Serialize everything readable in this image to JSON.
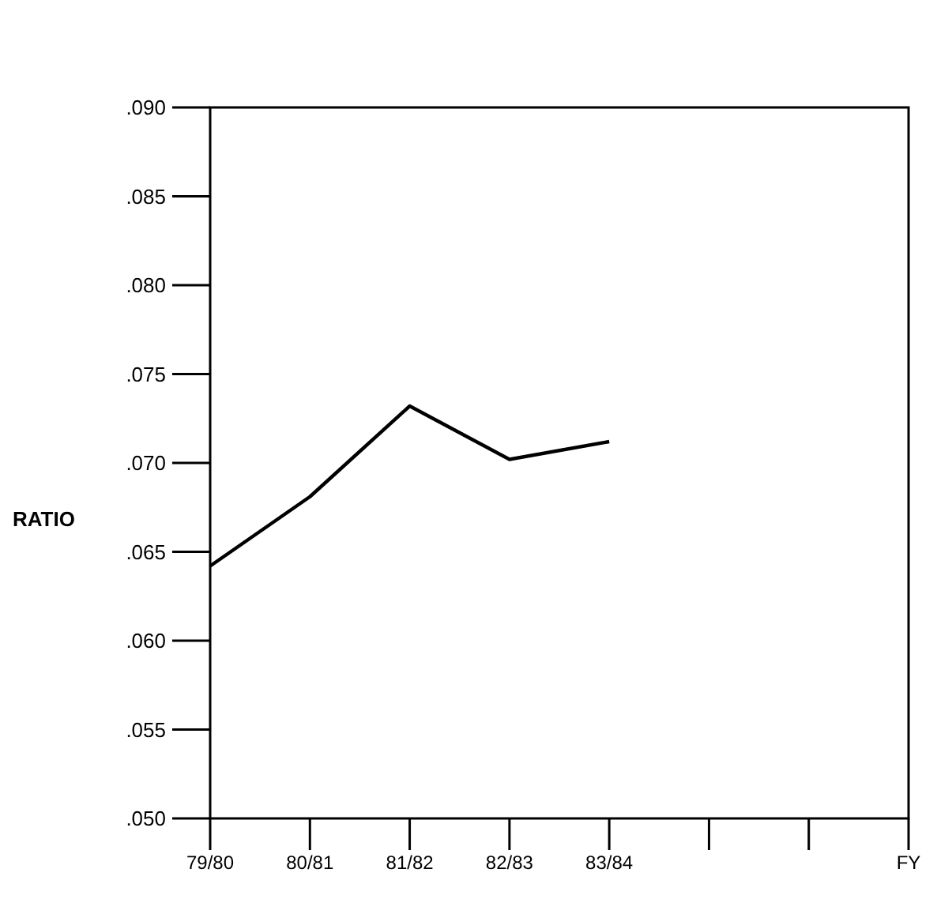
{
  "chart_data": {
    "type": "line",
    "ylabel": "RATIO",
    "xlabel": "FY",
    "categories": [
      "79/80",
      "80/81",
      "81/82",
      "82/83",
      "83/84",
      null,
      null,
      null
    ],
    "series": [
      {
        "color": "#000000",
        "values": [
          0.0642,
          0.0681,
          0.0732,
          0.0702,
          0.0712,
          null,
          null,
          null
        ]
      }
    ],
    "ylim": [
      0.05,
      0.09
    ],
    "yticks": [
      {
        "value": 0.05,
        "label": ".050"
      },
      {
        "value": 0.055,
        "label": ".055"
      },
      {
        "value": 0.06,
        "label": ".060"
      },
      {
        "value": 0.065,
        "label": ".065"
      },
      {
        "value": 0.07,
        "label": ".070"
      },
      {
        "value": 0.075,
        "label": ".075"
      },
      {
        "value": 0.08,
        "label": ".080"
      },
      {
        "value": 0.085,
        "label": ".085"
      },
      {
        "value": 0.09,
        "label": ".090"
      }
    ],
    "grid": false,
    "marker": "none",
    "line_style": "solid"
  }
}
